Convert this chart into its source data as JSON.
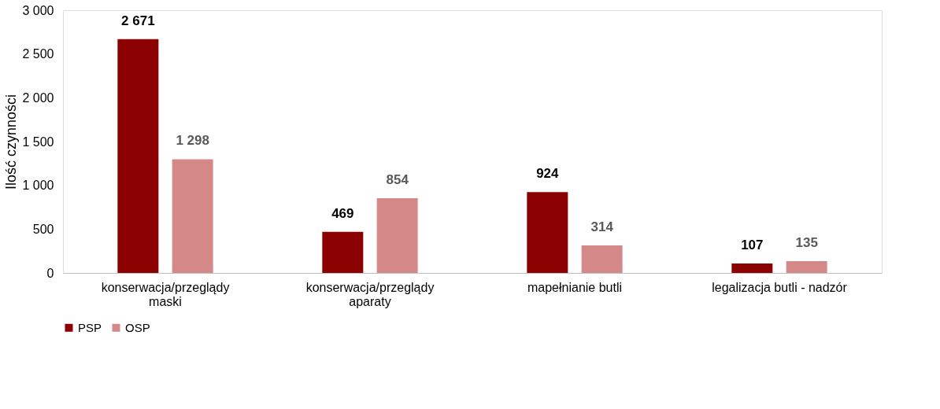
{
  "chart_data": {
    "type": "bar",
    "ylabel": "Ilość czynności",
    "categories": [
      "konserwacja/przeglądy\nmaski",
      "konserwacja/przeglądy\naparaty",
      "mapełnianie butli",
      "legalizacja butli - nadzór"
    ],
    "series": [
      {
        "name": "PSP",
        "color": "#8b0000",
        "values": [
          2671,
          469,
          924,
          107
        ],
        "value_labels": [
          "2 671",
          "469",
          "924",
          "107"
        ]
      },
      {
        "name": "OSP",
        "color": "#d48888",
        "values": [
          1298,
          854,
          314,
          135
        ],
        "value_labels": [
          "1 298",
          "854",
          "314",
          "135"
        ]
      }
    ],
    "ylim": [
      0,
      3000
    ],
    "yticks": [
      0,
      500,
      {
        "value": 1000,
        "label": "1 000"
      },
      {
        "value": 1500,
        "label": "1 500"
      },
      {
        "value": 2000,
        "label": "2 000"
      },
      {
        "value": 2500,
        "label": "2 500"
      },
      {
        "value": 3000,
        "label": "3 000"
      }
    ],
    "grid": false,
    "legend": "bottom"
  }
}
